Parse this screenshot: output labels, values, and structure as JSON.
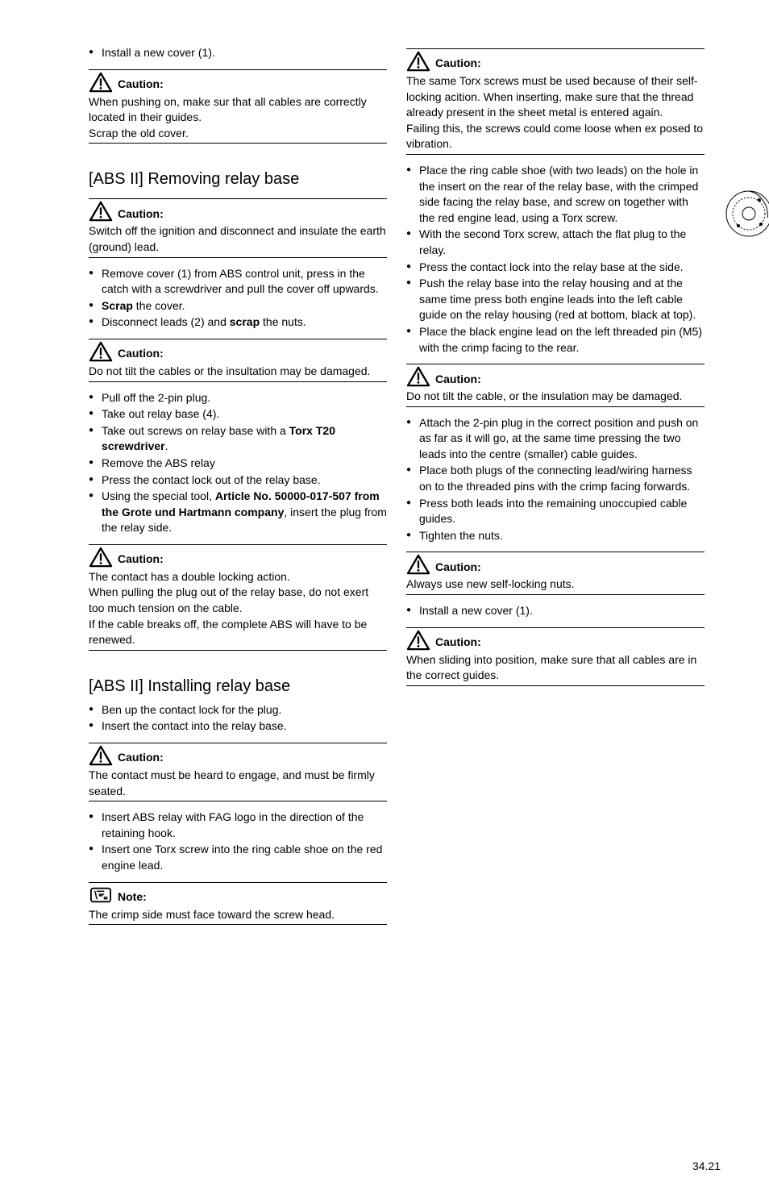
{
  "page_number": "34.21",
  "icons": {
    "caution_label": "Caution:",
    "note_label": "Note:"
  },
  "left": {
    "intro_bullets": [
      "Install a new cover (1)."
    ],
    "caution1": "When pushing on, make sur that all cables are correctly located in their guides.\nScrap the old cover.",
    "h1": "[ABS II] Removing relay base",
    "caution2": "Switch off the ignition and disconnect and insulate the earth (ground) lead.",
    "bullets2": [
      {
        "pre": "Remove cover (1) from ABS control unit, press in the catch with a screwdriver and pull the cover off upwards."
      },
      {
        "html": "<span class='b'>Scrap</span> the cover."
      },
      {
        "html": "Disconnect leads (2) and <span class='b'>scrap</span> the nuts."
      }
    ],
    "caution3": "Do not tilt the cables or the insultation may be damaged.",
    "bullets3": [
      {
        "pre": "Pull off the 2-pin plug."
      },
      {
        "pre": "Take out relay base (4)."
      },
      {
        "html": "Take out screws on relay base with a <span class='b'>Torx T20 screwdriver</span>."
      },
      {
        "pre": "Remove the ABS relay"
      },
      {
        "pre": "Press the contact lock out of the relay base."
      },
      {
        "html": "Using the special tool, <span class='b'>Article No. 50000-017-507 from the Grote und Hartmann company</span>, insert the plug from the relay side."
      }
    ],
    "caution4": "The contact has a double locking action.\nWhen pulling the plug out of the relay base, do not exert too much tension on the cable.\nIf the cable breaks off, the complete ABS will have to be renewed.",
    "h2": "[ABS II] Installing relay base",
    "bullets4": [
      {
        "pre": "Ben up the contact lock for the plug."
      },
      {
        "pre": "Insert the contact into the relay base."
      }
    ],
    "caution5": "The contact must be heard to engage, and must be firmly seated.",
    "bullets5": [
      {
        "pre": "Insert ABS relay with FAG logo in the direction of the retaining hook."
      },
      {
        "pre": "Insert one Torx screw into the ring cable shoe on the red engine lead."
      }
    ],
    "note1": "The crimp side must face toward the screw head."
  },
  "right": {
    "caution6": "The same Torx screws must be used because of their self-locking acition. When inserting, make sure that the thread already present in the sheet metal is entered again.\nFailing this, the screws could come loose when ex posed to vibration.",
    "bullets6": [
      {
        "pre": "Place the ring cable shoe (with two leads) on the hole in the insert on the rear of the relay base, with the crimped side facing the relay base, and screw on together with the red engine lead, using a Torx screw."
      },
      {
        "pre": "With the second Torx screw, attach the flat plug to the relay."
      },
      {
        "pre": "Press the contact lock into the relay base at the side."
      },
      {
        "pre": "Push the relay base into the relay housing and at the same time press both engine leads into the left cable guide on the relay housing (red at bottom, black at top)."
      },
      {
        "pre": "Place the black engine lead on the left threaded pin (M5) with the crimp facing to the rear."
      }
    ],
    "caution7": "Do not tilt the cable, or the insulation may be damaged.",
    "bullets7": [
      {
        "pre": "Attach the 2-pin plug in the correct position and push on as far as it will go, at the same time pressing the two leads into the centre (smaller) cable guides."
      },
      {
        "pre": "Place both plugs of the connecting lead/wiring harness on to the threaded pins with the crimp facing forwards."
      },
      {
        "pre": "Press both leads into the remaining unoccupied cable guides."
      },
      {
        "pre": "Tighten the nuts."
      }
    ],
    "caution8": "Always use new self-locking nuts.",
    "bullets8": [
      {
        "pre": "Install a new cover (1)."
      }
    ],
    "caution9": "When sliding into position, make sure that all cables are in the correct guides."
  }
}
